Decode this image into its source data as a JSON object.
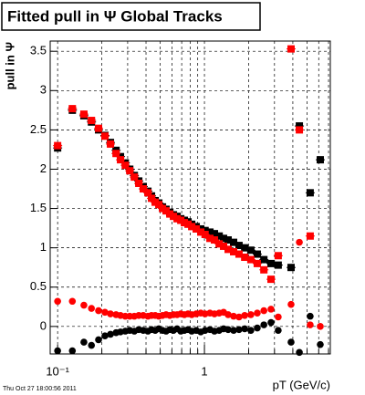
{
  "chart_data": {
    "type": "scatter",
    "title": "Fitted pull in  Ψ  Global Tracks",
    "ylabel": "pull in Ψ",
    "xlabel": "pT (GeV/c)",
    "footer": "Thu Oct 27 18:00:56 2011",
    "log_x": true,
    "grid": true,
    "xlim": [
      0.089,
      7.2
    ],
    "ylim": [
      -0.35,
      3.63
    ],
    "xticks": [
      {
        "value": 0.1,
        "label": "10⁻¹"
      },
      1
    ],
    "xminorticks": [
      0.2,
      0.3,
      0.4,
      0.5,
      0.6,
      0.7,
      0.8,
      0.9,
      2,
      3,
      4,
      5,
      6,
      7
    ],
    "yticks": [
      0,
      0.5,
      1,
      1.5,
      2,
      2.5,
      3,
      3.5
    ],
    "x": [
      0.1,
      0.126,
      0.151,
      0.17,
      0.19,
      0.21,
      0.229,
      0.25,
      0.268,
      0.289,
      0.31,
      0.333,
      0.357,
      0.383,
      0.412,
      0.436,
      0.462,
      0.489,
      0.518,
      0.548,
      0.581,
      0.615,
      0.651,
      0.69,
      0.73,
      0.773,
      0.819,
      0.879,
      0.944,
      1.01,
      1.09,
      1.17,
      1.26,
      1.35,
      1.45,
      1.58,
      1.72,
      1.88,
      2.07,
      2.29,
      2.54,
      2.84,
      3.18,
      3.89,
      4.43,
      5.25,
      6.15
    ],
    "series": [
      {
        "color": "#000000",
        "marker": "square",
        "values": [
          2.27,
          2.75,
          2.68,
          2.6,
          2.5,
          2.43,
          2.34,
          2.24,
          2.16,
          2.08,
          2.0,
          1.92,
          1.85,
          1.78,
          1.72,
          1.66,
          1.6,
          1.57,
          1.52,
          1.49,
          1.45,
          1.42,
          1.4,
          1.37,
          1.35,
          1.33,
          1.3,
          1.27,
          1.24,
          1.22,
          1.2,
          1.18,
          1.15,
          1.12,
          1.1,
          1.07,
          1.03,
          1.0,
          0.97,
          0.92,
          0.85,
          0.8,
          0.78,
          0.75,
          2.55,
          1.7,
          2.12
        ]
      },
      {
        "color": "#ff0000",
        "marker": "square",
        "values": [
          2.3,
          2.77,
          2.7,
          2.62,
          2.52,
          2.42,
          2.32,
          2.2,
          2.12,
          2.05,
          1.98,
          1.9,
          1.82,
          1.75,
          1.7,
          1.63,
          1.58,
          1.55,
          1.5,
          1.47,
          1.43,
          1.4,
          1.37,
          1.35,
          1.32,
          1.3,
          1.27,
          1.24,
          1.2,
          1.17,
          1.12,
          1.1,
          1.05,
          1.02,
          0.98,
          0.95,
          0.92,
          0.88,
          0.85,
          0.8,
          0.72,
          0.6,
          0.9,
          3.53,
          2.5,
          1.15,
          null
        ]
      },
      {
        "color": "#ff0000",
        "marker": "circle",
        "values": [
          0.32,
          0.32,
          0.27,
          0.23,
          0.2,
          0.18,
          0.16,
          0.15,
          0.14,
          0.13,
          0.13,
          0.13,
          0.14,
          0.14,
          0.13,
          0.14,
          0.14,
          0.13,
          0.14,
          0.15,
          0.14,
          0.15,
          0.15,
          0.16,
          0.15,
          0.16,
          0.15,
          0.16,
          0.17,
          0.16,
          0.17,
          0.16,
          0.17,
          0.18,
          0.15,
          0.13,
          0.12,
          0.14,
          0.15,
          0.17,
          0.2,
          0.22,
          0.12,
          0.28,
          1.07,
          0.02,
          0.0
        ]
      },
      {
        "color": "#000000",
        "marker": "circle",
        "values": [
          -0.31,
          -0.31,
          -0.2,
          -0.24,
          -0.17,
          -0.12,
          -0.1,
          -0.08,
          -0.07,
          -0.06,
          -0.05,
          -0.06,
          -0.04,
          -0.05,
          -0.06,
          -0.04,
          -0.05,
          -0.03,
          -0.05,
          -0.06,
          -0.04,
          -0.05,
          -0.03,
          -0.06,
          -0.05,
          -0.04,
          -0.06,
          -0.05,
          -0.07,
          -0.05,
          -0.04,
          -0.06,
          -0.05,
          -0.03,
          -0.04,
          -0.05,
          -0.04,
          -0.03,
          -0.05,
          -0.02,
          0.02,
          0.05,
          -0.05,
          -0.2,
          -0.33,
          0.13,
          -0.23
        ]
      }
    ]
  }
}
